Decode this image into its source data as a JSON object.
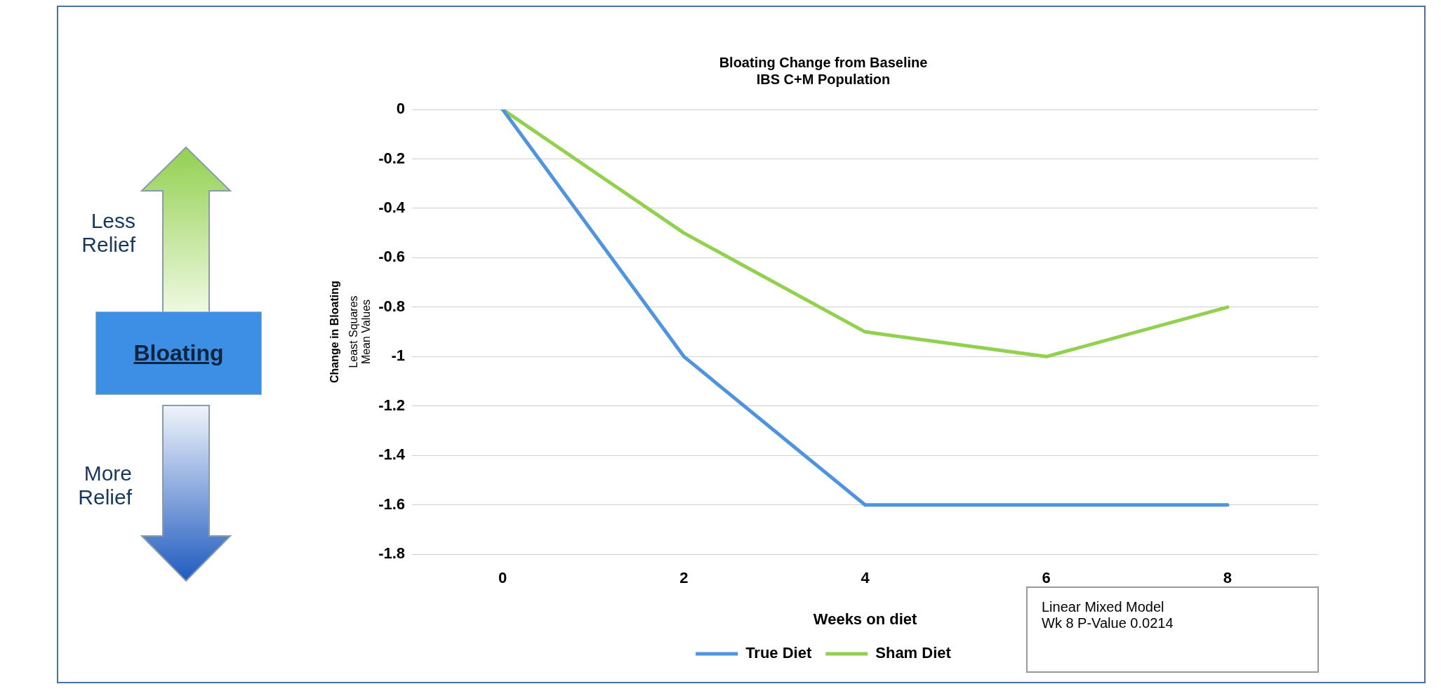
{
  "chart_data": {
    "type": "line",
    "title": "Bloating Change from Baseline",
    "subtitle": "IBS C+M Population",
    "xlabel": "Weeks on diet",
    "ylabel": "Change in Bloating",
    "categories": [
      "0",
      "2",
      "4",
      "6",
      "8"
    ],
    "series": [
      {
        "name": "True Diet",
        "color": "#4f94dc",
        "values": [
          0,
          -1,
          -1.6,
          -1.6,
          -1.6
        ]
      },
      {
        "name": "Sham Diet",
        "color": "#92d050",
        "values": [
          0,
          -0.5,
          -0.9,
          -1,
          -0.8
        ]
      }
    ],
    "ylim": [
      -1.8,
      0
    ],
    "yticks": [
      0,
      -0.2,
      -0.4,
      -0.6,
      -0.8,
      -1,
      -1.2,
      -1.4,
      -1.6,
      -1.8
    ],
    "grid": "y",
    "legend": "bottom",
    "marker": "none",
    "line_style": "solid",
    "annotations": [
      "Less\nRelief",
      "Bloating",
      "More\nRelief",
      "Least Squares\nMean Values",
      "Linear Mixed Model\nWk 8 P-Value 0.0214"
    ]
  }
}
